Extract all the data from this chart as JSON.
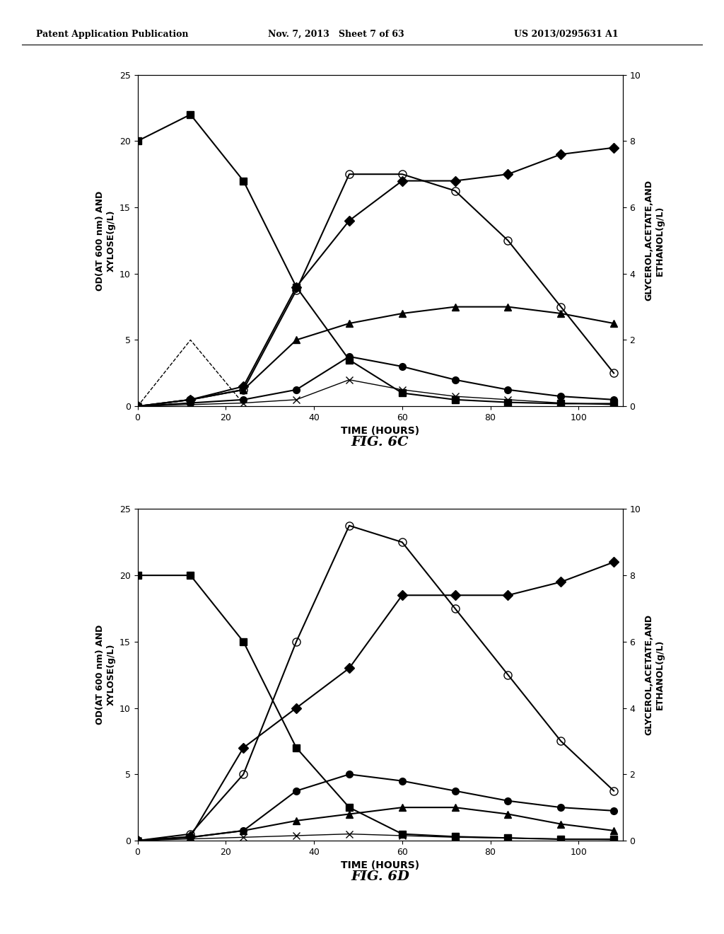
{
  "header_left": "Patent Application Publication",
  "header_center": "Nov. 7, 2013   Sheet 7 of 63",
  "header_right": "US 2013/0295631 A1",
  "fig_label_C": "FIG. 6C",
  "fig_label_D": "FIG. 6D",
  "background_color": "#ffffff",
  "text_color": "#000000",
  "6C": {
    "xlabel": "TIME (HOURS)",
    "ylabel_left": "OD(AT 600 nm) AND\nXYLOSE(g/L)",
    "ylabel_right": "GLYCEROL,ACETATE,AND\nETHANOL(g/L)",
    "xlim": [
      0,
      110
    ],
    "ylim_left": [
      0,
      25
    ],
    "ylim_right": [
      0,
      10
    ],
    "xticks": [
      0,
      20,
      40,
      60,
      80,
      100
    ],
    "yticks_left": [
      0,
      5,
      10,
      15,
      20,
      25
    ],
    "yticks_right": [
      0,
      2,
      4,
      6,
      8,
      10
    ],
    "series": {
      "xylose_filled_square": {
        "x": [
          0,
          12,
          24,
          36,
          48,
          60,
          72,
          84,
          96,
          108
        ],
        "y": [
          20,
          22,
          17,
          9,
          3.5,
          1,
          0.5,
          0.3,
          0.2,
          0.2
        ],
        "marker": "s",
        "markersize": 7,
        "color": "#000000",
        "linestyle": "-",
        "fillstyle": "full",
        "linewidth": 1.5,
        "axis": "left"
      },
      "OD_filled_diamond": {
        "x": [
          0,
          12,
          24,
          36,
          48,
          60,
          72,
          84,
          96,
          108
        ],
        "y": [
          0,
          0.5,
          1.5,
          9,
          14,
          17,
          17,
          17.5,
          19,
          19.5
        ],
        "marker": "D",
        "markersize": 7,
        "color": "#000000",
        "linestyle": "-",
        "fillstyle": "full",
        "linewidth": 1.5,
        "axis": "left"
      },
      "ethanol_open_circle": {
        "x": [
          0,
          12,
          24,
          36,
          48,
          60,
          72,
          84,
          96,
          108
        ],
        "y": [
          0,
          0.2,
          0.5,
          3.5,
          7,
          7,
          6.5,
          5,
          3,
          1
        ],
        "marker": "o",
        "markersize": 8,
        "color": "#000000",
        "linestyle": "-",
        "fillstyle": "none",
        "linewidth": 1.5,
        "axis": "right"
      },
      "glycerol_filled_triangle": {
        "x": [
          0,
          12,
          24,
          36,
          48,
          60,
          72,
          84,
          96,
          108
        ],
        "y": [
          0,
          0.2,
          0.5,
          2,
          2.5,
          2.8,
          3,
          3,
          2.8,
          2.5
        ],
        "marker": "^",
        "markersize": 7,
        "color": "#000000",
        "linestyle": "-",
        "fillstyle": "full",
        "linewidth": 1.5,
        "axis": "right"
      },
      "acetate_filled_circle": {
        "x": [
          0,
          12,
          24,
          36,
          48,
          60,
          72,
          84,
          96,
          108
        ],
        "y": [
          0,
          0.1,
          0.2,
          0.5,
          1.5,
          1.2,
          0.8,
          0.5,
          0.3,
          0.2
        ],
        "marker": "o",
        "markersize": 7,
        "color": "#000000",
        "linestyle": "-",
        "fillstyle": "full",
        "linewidth": 1.5,
        "axis": "right"
      },
      "xylitol_x": {
        "x": [
          0,
          12,
          24,
          36,
          48,
          60,
          72,
          84,
          96,
          108
        ],
        "y": [
          0,
          0.05,
          0.1,
          0.2,
          0.8,
          0.5,
          0.3,
          0.2,
          0.1,
          0.05
        ],
        "marker": "x",
        "markersize": 7,
        "color": "#000000",
        "linestyle": "-",
        "fillstyle": "full",
        "linewidth": 1.0,
        "axis": "right"
      },
      "dashed_line": {
        "x": [
          0,
          12,
          24
        ],
        "y": [
          0,
          5,
          0.2
        ],
        "marker": "None",
        "markersize": 0,
        "color": "#000000",
        "linestyle": "--",
        "fillstyle": "full",
        "linewidth": 1.0,
        "axis": "left"
      }
    }
  },
  "6D": {
    "xlabel": "TIME (HOURS)",
    "ylabel_left": "OD(AT 600 nm) AND\nXYLOSE(g/L)",
    "ylabel_right": "GLYCEROL,ACETATE,AND\nETHANOL(g/L)",
    "xlim": [
      0,
      110
    ],
    "ylim_left": [
      0,
      25
    ],
    "ylim_right": [
      0,
      10
    ],
    "xticks": [
      0,
      20,
      40,
      60,
      80,
      100
    ],
    "yticks_left": [
      0,
      5,
      10,
      15,
      20,
      25
    ],
    "yticks_right": [
      0,
      2,
      4,
      6,
      8,
      10
    ],
    "series": {
      "xylose_filled_square": {
        "x": [
          0,
          12,
          24,
          36,
          48,
          60,
          72,
          84,
          96,
          108
        ],
        "y": [
          20,
          20,
          15,
          7,
          2.5,
          0.5,
          0.3,
          0.2,
          0.1,
          0.1
        ],
        "marker": "s",
        "markersize": 7,
        "color": "#000000",
        "linestyle": "-",
        "fillstyle": "full",
        "linewidth": 1.5,
        "axis": "left"
      },
      "OD_filled_diamond": {
        "x": [
          0,
          12,
          24,
          36,
          48,
          60,
          72,
          84,
          96,
          108
        ],
        "y": [
          0,
          0.3,
          7,
          10,
          13,
          18.5,
          18.5,
          18.5,
          19.5,
          21
        ],
        "marker": "D",
        "markersize": 7,
        "color": "#000000",
        "linestyle": "-",
        "fillstyle": "full",
        "linewidth": 1.5,
        "axis": "left"
      },
      "ethanol_open_circle": {
        "x": [
          0,
          12,
          24,
          36,
          48,
          60,
          72,
          84,
          96,
          108
        ],
        "y": [
          0,
          0.2,
          2,
          6,
          9.5,
          9,
          7,
          5,
          3,
          1.5
        ],
        "marker": "o",
        "markersize": 8,
        "color": "#000000",
        "linestyle": "-",
        "fillstyle": "none",
        "linewidth": 1.5,
        "axis": "right"
      },
      "glycerol_filled_triangle": {
        "x": [
          0,
          12,
          24,
          36,
          48,
          60,
          72,
          84,
          96,
          108
        ],
        "y": [
          0,
          0.1,
          0.3,
          0.6,
          0.8,
          1.0,
          1.0,
          0.8,
          0.5,
          0.3
        ],
        "marker": "^",
        "markersize": 7,
        "color": "#000000",
        "linestyle": "-",
        "fillstyle": "full",
        "linewidth": 1.5,
        "axis": "right"
      },
      "acetate_filled_circle": {
        "x": [
          0,
          12,
          24,
          36,
          48,
          60,
          72,
          84,
          96,
          108
        ],
        "y": [
          0,
          0.1,
          0.3,
          1.5,
          2.0,
          1.8,
          1.5,
          1.2,
          1.0,
          0.9
        ],
        "marker": "o",
        "markersize": 7,
        "color": "#000000",
        "linestyle": "-",
        "fillstyle": "full",
        "linewidth": 1.5,
        "axis": "right"
      },
      "xylitol_x": {
        "x": [
          0,
          12,
          24,
          36,
          48,
          60,
          72,
          84,
          96,
          108
        ],
        "y": [
          0,
          0.05,
          0.1,
          0.15,
          0.2,
          0.15,
          0.1,
          0.08,
          0.05,
          0.03
        ],
        "marker": "x",
        "markersize": 7,
        "color": "#000000",
        "linestyle": "-",
        "fillstyle": "full",
        "linewidth": 1.0,
        "axis": "right"
      }
    }
  }
}
